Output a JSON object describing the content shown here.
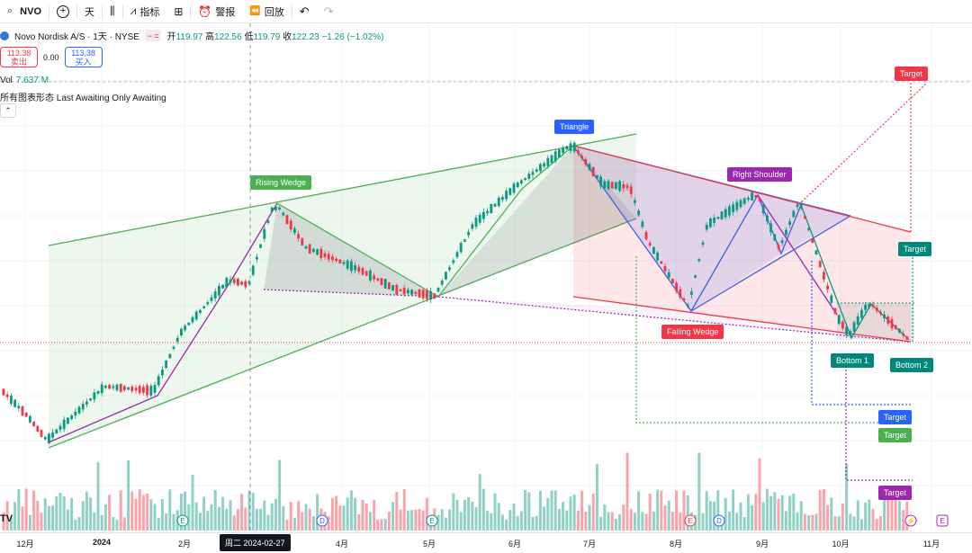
{
  "toolbar": {
    "symbol": "NVO",
    "interval": "天",
    "indicators": "指标",
    "alert": "警报",
    "replay": "回放"
  },
  "legend": {
    "title": "Novo Nordisk A/S · 1天 · NYSE",
    "open_label": "开",
    "open": "119.97",
    "high_label": "高",
    "high": "122.56",
    "low_label": "低",
    "low": "119.79",
    "close_label": "收",
    "close": "122.23",
    "change": "−1.26 (−1.02%)"
  },
  "trade": {
    "sell_price": "113.38",
    "sell_label": "卖出",
    "spread": "0.00",
    "buy_price": "113.38",
    "buy_label": "买入"
  },
  "volume": {
    "label": "Vol",
    "value": "7.637 M"
  },
  "pattern_indicator": "所有图表形态 Last Awaiting Only Awaiting",
  "patterns": {
    "rising_wedge": "Rising Wedge",
    "triangle": "Triangle",
    "right_shoulder": "Right Shoulder",
    "falling_wedge": "Falling Wedge",
    "bottom1": "Bottom 1",
    "bottom2": "Bottom 2",
    "target": "Target"
  },
  "xaxis": {
    "ticks": [
      "12月",
      "2024",
      "2月",
      "4月",
      "5月",
      "6月",
      "7月",
      "8月",
      "9月",
      "10月",
      "11月"
    ],
    "crosshair_date": "周二 2024-02-27"
  },
  "event_markers": [
    "E",
    "D",
    "E",
    "E",
    "D",
    "E"
  ],
  "colors": {
    "up": "#089981",
    "down": "#f23645",
    "green_pattern": "#4caf50",
    "blue_pattern": "#2962ff",
    "purple_pattern": "#9c27b0",
    "red_pattern": "#f23645",
    "teal_pattern": "#00897b"
  }
}
